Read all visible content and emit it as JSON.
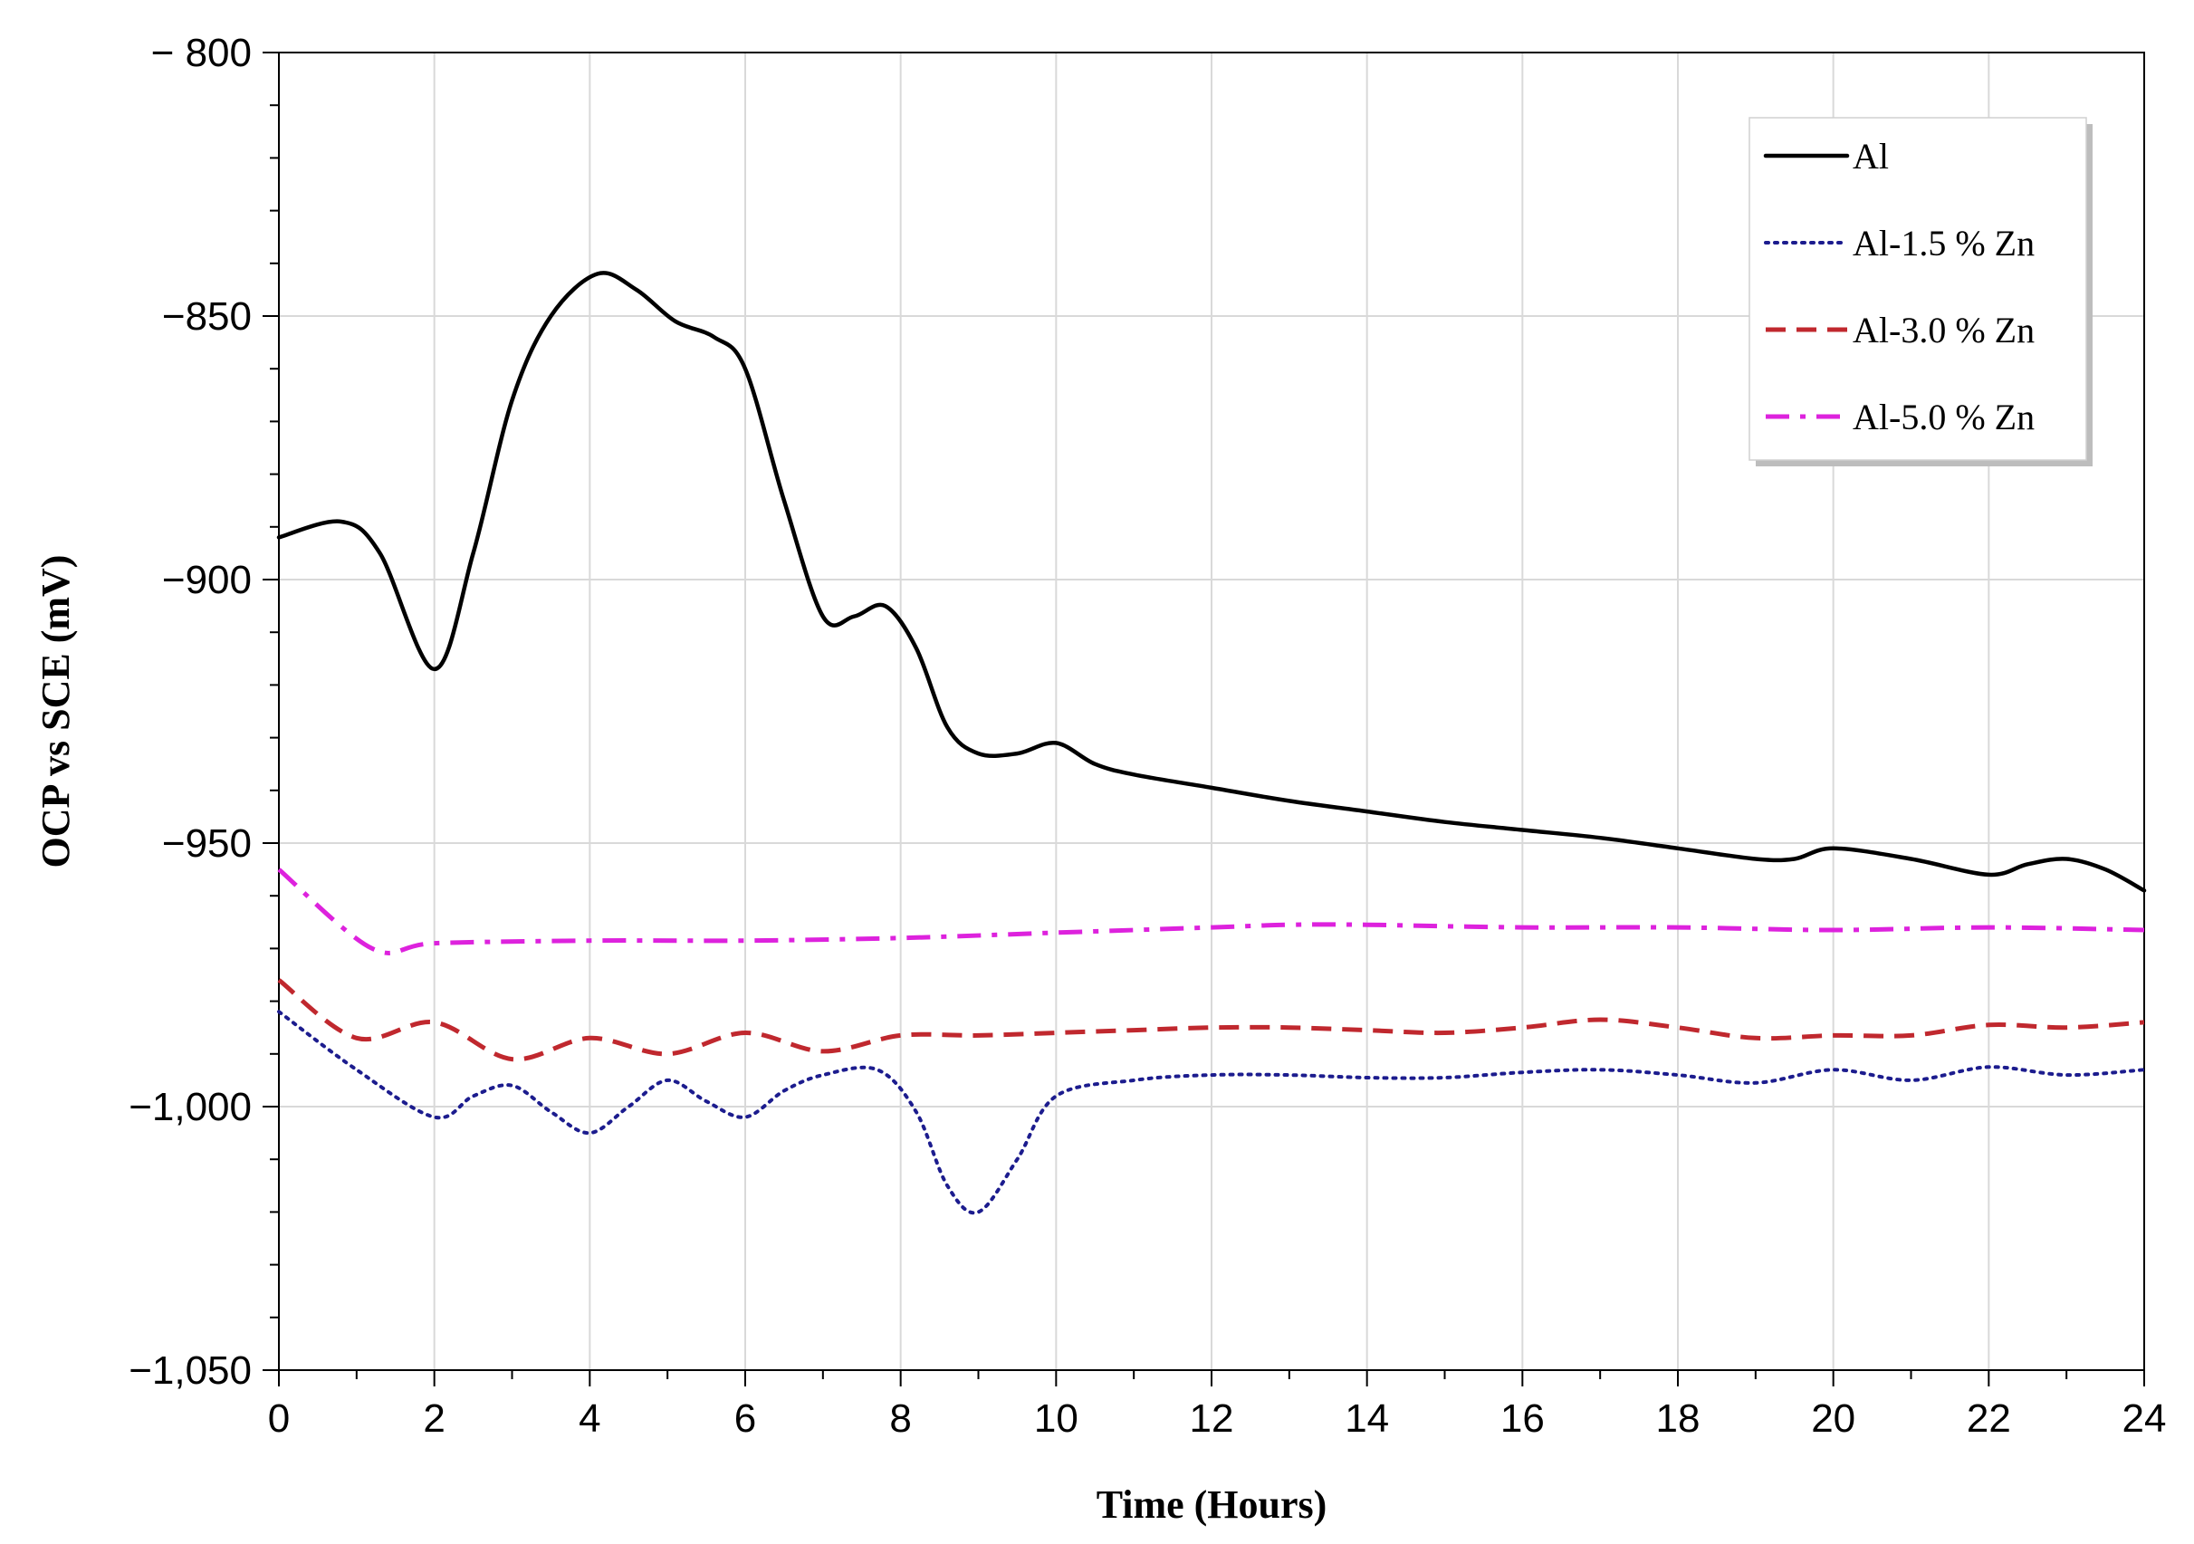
{
  "chart_data": {
    "type": "line",
    "title": "",
    "xlabel": "Time (Hours)",
    "ylabel": "OCP vs SCE (mV)",
    "xlim": [
      0,
      24
    ],
    "ylim": [
      -1050,
      -800
    ],
    "x_ticks": [
      0,
      2,
      4,
      6,
      8,
      10,
      12,
      14,
      16,
      18,
      20,
      22,
      24
    ],
    "y_ticks": [
      -1050,
      -1000,
      -950,
      -900,
      -850,
      -800
    ],
    "y_tick_labels": [
      "−1,050",
      "−1,000",
      "−950",
      "−900",
      "−850",
      "− 800"
    ],
    "grid": true,
    "legend_position": "top-right",
    "series": [
      {
        "name": "Al",
        "color": "#000000",
        "style": "solid",
        "x": [
          0,
          0.8,
          1.3,
          2,
          2.5,
          3,
          3.5,
          4.1,
          4.6,
          5.1,
          5.6,
          6,
          6.5,
          7,
          7.4,
          7.8,
          8.2,
          8.6,
          9,
          9.5,
          10,
          10.5,
          11,
          12,
          13,
          14,
          15,
          16,
          17,
          18,
          19,
          19.5,
          20,
          21,
          22,
          22.5,
          23,
          23.5,
          24
        ],
        "y": [
          -892,
          -889,
          -895,
          -917,
          -895,
          -866,
          -850,
          -842,
          -845,
          -851,
          -854,
          -860,
          -885,
          -907,
          -907,
          -905,
          -913,
          -928,
          -933,
          -933,
          -931,
          -935,
          -937,
          -939.5,
          -942,
          -944,
          -946,
          -947.5,
          -949,
          -951,
          -953,
          -953,
          -951,
          -953,
          -956,
          -954,
          -953,
          -955,
          -959
        ]
      },
      {
        "name": "Al-1.5 % Zn",
        "color": "#1c1c8e",
        "style": "dotted",
        "x": [
          0,
          1,
          2,
          2.5,
          3,
          3.5,
          4,
          4.5,
          5,
          5.5,
          6,
          6.5,
          7,
          7.7,
          8.2,
          8.6,
          9,
          9.5,
          10,
          11,
          12,
          13,
          14,
          15,
          16,
          17,
          18,
          19,
          20,
          21,
          22,
          23,
          24
        ],
        "y": [
          -982,
          -993,
          -1002,
          -998,
          -996,
          -1001,
          -1005,
          -1000,
          -995,
          -999,
          -1002,
          -997,
          -994,
          -993,
          -1001,
          -1015,
          -1020,
          -1010,
          -998,
          -995,
          -994,
          -994,
          -994.5,
          -994.5,
          -993.5,
          -993,
          -994,
          -995.5,
          -993,
          -995,
          -992.5,
          -994,
          -993
        ]
      },
      {
        "name": "Al-3.0 % Zn",
        "color": "#c0282e",
        "style": "dashed",
        "x": [
          0,
          1,
          2,
          3,
          4,
          5,
          6,
          7,
          8,
          9,
          10,
          11,
          12,
          13,
          14,
          15,
          16,
          17,
          18,
          19,
          20,
          21,
          22,
          23,
          24
        ],
        "y": [
          -976,
          -987,
          -984,
          -991,
          -987,
          -990,
          -986,
          -989.5,
          -986.5,
          -986.5,
          -986,
          -985.5,
          -985,
          -985,
          -985.5,
          -986,
          -985,
          -983.5,
          -985,
          -987,
          -986.5,
          -986.5,
          -984.5,
          -985,
          -984
        ]
      },
      {
        "name": "Al-5.0 % Zn",
        "color": "#dd22dd",
        "style": "dashdot",
        "x": [
          0,
          1.2,
          2,
          4,
          6,
          8,
          10,
          12,
          13,
          14,
          16,
          18,
          20,
          22,
          24
        ],
        "y": [
          -955,
          -970,
          -969,
          -968.5,
          -968.5,
          -968,
          -967,
          -966,
          -965.5,
          -965.5,
          -966,
          -966,
          -966.5,
          -966,
          -966.5
        ]
      }
    ]
  }
}
